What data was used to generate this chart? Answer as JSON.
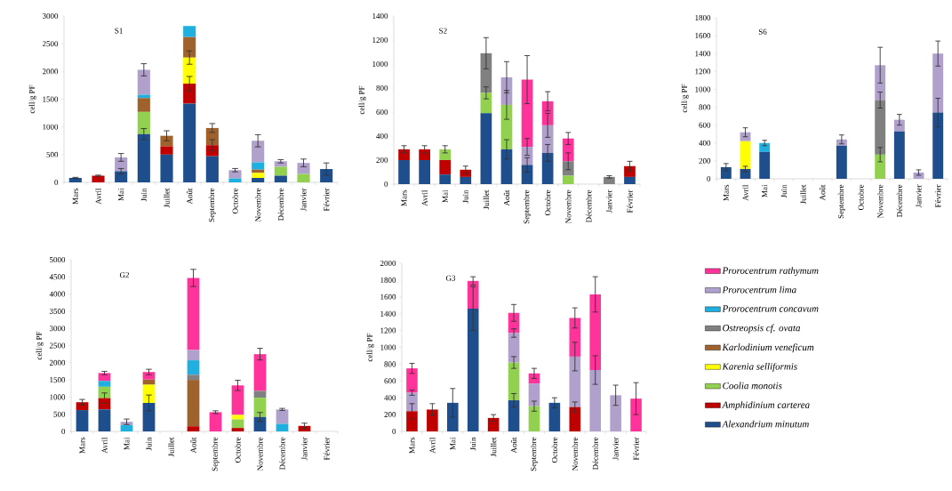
{
  "chart_data": [
    {
      "type": "bar",
      "stacked": true,
      "title": "S1",
      "ylabel": "cell/g PF",
      "categories": [
        "Mars",
        "Avril",
        "Mai",
        "Juin",
        "Juillet",
        "Août",
        "Septembre",
        "Octobre",
        "Novembre",
        "Décembre",
        "Janvier",
        "Février"
      ],
      "ylim": [
        0,
        3000
      ],
      "yticks": [
        0,
        500,
        1000,
        1500,
        2000,
        2500,
        3000
      ],
      "series": [
        {
          "color": "#1f4e8c",
          "values": [
            80,
            null,
            200,
            870,
            500,
            1420,
            470,
            null,
            80,
            120,
            null,
            240
          ],
          "errors": [
            10,
            null,
            50,
            100,
            null,
            null,
            null,
            null,
            null,
            null,
            null,
            110
          ]
        },
        {
          "color": "#c00000",
          "values": [
            null,
            120,
            null,
            null,
            150,
            360,
            200,
            null,
            null,
            null,
            null,
            null
          ],
          "errors": [
            null,
            10,
            null,
            null,
            null,
            130,
            100,
            null,
            null,
            null,
            null,
            null
          ]
        },
        {
          "color": "#92d050",
          "values": [
            null,
            null,
            null,
            400,
            null,
            null,
            null,
            null,
            null,
            160,
            150,
            null
          ],
          "errors": [
            null,
            null,
            null,
            null,
            null,
            null,
            null,
            null,
            null,
            null,
            null,
            null
          ]
        },
        {
          "color": "#ffff00",
          "values": [
            null,
            null,
            null,
            null,
            null,
            470,
            null,
            null,
            90,
            null,
            null,
            null
          ],
          "errors": [
            null,
            null,
            null,
            null,
            null,
            120,
            null,
            null,
            null,
            null,
            null,
            null
          ]
        },
        {
          "color": "#a0622d",
          "values": [
            null,
            null,
            null,
            250,
            190,
            370,
            310,
            null,
            60,
            null,
            null,
            null
          ],
          "errors": [
            null,
            null,
            null,
            null,
            90,
            null,
            80,
            null,
            null,
            null,
            null,
            null
          ]
        },
        {
          "color": "#1fb0e0",
          "values": [
            null,
            null,
            null,
            60,
            null,
            200,
            null,
            70,
            130,
            null,
            null,
            null
          ],
          "errors": [
            null,
            null,
            null,
            null,
            null,
            null,
            null,
            null,
            null,
            null,
            null,
            null
          ]
        },
        {
          "color": "#b0a0cc",
          "values": [
            null,
            null,
            250,
            450,
            null,
            null,
            null,
            150,
            390,
            100,
            200,
            null
          ],
          "errors": [
            null,
            null,
            70,
            110,
            null,
            null,
            null,
            30,
            110,
            30,
            70,
            null
          ]
        }
      ]
    },
    {
      "type": "bar",
      "stacked": true,
      "title": "S2",
      "ylabel": "cell/g PF",
      "categories": [
        "Mars",
        "Avril",
        "Mai",
        "Juin",
        "Juillet",
        "Août",
        "Septembre",
        "Octobre",
        "Novembre",
        "Décembre",
        "Janvier",
        "Février"
      ],
      "ylim": [
        0,
        1400
      ],
      "yticks": [
        0,
        200,
        400,
        600,
        800,
        1000,
        1200,
        1400
      ],
      "series": [
        {
          "color": "#1f4e8c",
          "values": [
            200,
            200,
            80,
            60,
            590,
            290,
            160,
            260,
            null,
            null,
            null,
            60
          ],
          "errors": [
            null,
            null,
            null,
            null,
            null,
            80,
            60,
            70,
            null,
            null,
            null,
            null
          ]
        },
        {
          "color": "#c00000",
          "values": [
            90,
            90,
            120,
            60,
            null,
            null,
            null,
            null,
            null,
            null,
            null,
            90
          ],
          "errors": [
            30,
            30,
            null,
            30,
            null,
            null,
            null,
            null,
            null,
            null,
            null,
            40
          ]
        },
        {
          "color": "#92d050",
          "values": [
            null,
            null,
            90,
            null,
            170,
            370,
            null,
            null,
            70,
            null,
            null,
            null
          ],
          "errors": [
            null,
            null,
            30,
            null,
            50,
            120,
            null,
            null,
            null,
            null,
            null,
            null
          ]
        },
        {
          "color": "#808080",
          "values": [
            null,
            null,
            null,
            null,
            330,
            null,
            null,
            null,
            120,
            null,
            60,
            null
          ],
          "errors": [
            null,
            null,
            null,
            null,
            130,
            null,
            null,
            null,
            70,
            null,
            10,
            null
          ]
        },
        {
          "color": "#b0a0cc",
          "values": [
            null,
            null,
            null,
            null,
            null,
            230,
            150,
            230,
            null,
            null,
            null,
            null
          ],
          "errors": [
            null,
            null,
            null,
            null,
            null,
            130,
            70,
            100,
            null,
            null,
            null,
            null
          ]
        },
        {
          "color": "#ff3399",
          "values": [
            null,
            null,
            null,
            null,
            null,
            null,
            560,
            200,
            190,
            null,
            null,
            null
          ],
          "errors": [
            null,
            null,
            null,
            null,
            null,
            null,
            200,
            80,
            50,
            null,
            null,
            null
          ]
        }
      ]
    },
    {
      "type": "bar",
      "stacked": true,
      "title": "S6",
      "ylabel": "cell/g PF",
      "categories": [
        "Mars",
        "Avril",
        "Mai",
        "Juin",
        "Juillet",
        "Août",
        "Septembre",
        "Octobre",
        "Novembre",
        "Décembre",
        "Janvier",
        "Février"
      ],
      "ylim": [
        0,
        1800
      ],
      "yticks": [
        0,
        200,
        400,
        600,
        800,
        1000,
        1200,
        1400,
        1600,
        1800
      ],
      "series": [
        {
          "color": "#1f4e8c",
          "values": [
            130,
            110,
            300,
            null,
            null,
            null,
            370,
            null,
            null,
            530,
            null,
            740
          ],
          "errors": [
            40,
            30,
            null,
            null,
            null,
            null,
            null,
            null,
            null,
            null,
            null,
            160
          ]
        },
        {
          "color": "#92d050",
          "values": [
            null,
            null,
            null,
            null,
            null,
            null,
            null,
            null,
            270,
            null,
            null,
            null
          ],
          "errors": [
            null,
            null,
            null,
            null,
            null,
            null,
            null,
            null,
            80,
            null,
            null,
            null
          ]
        },
        {
          "color": "#ffff00",
          "values": [
            null,
            310,
            null,
            null,
            null,
            null,
            null,
            null,
            null,
            null,
            null,
            null
          ],
          "errors": [
            null,
            null,
            null,
            null,
            null,
            null,
            null,
            null,
            null,
            null,
            null,
            null
          ]
        },
        {
          "color": "#808080",
          "values": [
            null,
            null,
            null,
            null,
            null,
            null,
            null,
            null,
            610,
            null,
            null,
            null
          ],
          "errors": [
            null,
            null,
            null,
            null,
            null,
            null,
            null,
            null,
            90,
            null,
            null,
            null
          ]
        },
        {
          "color": "#1fb0e0",
          "values": [
            null,
            null,
            100,
            null,
            null,
            null,
            null,
            null,
            null,
            null,
            null,
            null
          ],
          "errors": [
            null,
            null,
            30,
            null,
            null,
            null,
            null,
            null,
            null,
            null,
            null,
            null
          ]
        },
        {
          "color": "#b0a0cc",
          "values": [
            null,
            100,
            null,
            null,
            null,
            null,
            70,
            null,
            390,
            130,
            70,
            660
          ],
          "errors": [
            null,
            50,
            null,
            null,
            null,
            null,
            50,
            null,
            200,
            60,
            30,
            140
          ]
        }
      ]
    },
    {
      "type": "bar",
      "stacked": true,
      "title": "G2",
      "ylabel": "cell/g PF",
      "categories": [
        "Mars",
        "Avril",
        "Mai",
        "Juin",
        "Juillet",
        "Août",
        "Septembre",
        "Octobre",
        "Novembre",
        "Décembre",
        "Janvier",
        "Février"
      ],
      "ylim": [
        0,
        5000
      ],
      "yticks": [
        0,
        500,
        1000,
        1500,
        2000,
        2500,
        3000,
        3500,
        4000,
        4500,
        5000
      ],
      "series": [
        {
          "color": "#1f4e8c",
          "values": [
            620,
            640,
            null,
            830,
            null,
            null,
            null,
            null,
            420,
            null,
            null,
            null
          ],
          "errors": [
            null,
            null,
            null,
            230,
            null,
            null,
            null,
            null,
            130,
            null,
            null,
            null
          ]
        },
        {
          "color": "#c00000",
          "values": [
            230,
            330,
            null,
            null,
            null,
            150,
            null,
            100,
            null,
            null,
            160,
            null
          ],
          "errors": [
            80,
            150,
            null,
            null,
            null,
            null,
            null,
            null,
            null,
            null,
            80,
            null
          ]
        },
        {
          "color": "#92d050",
          "values": [
            null,
            330,
            null,
            null,
            null,
            null,
            null,
            250,
            560,
            null,
            null,
            null
          ],
          "errors": [
            null,
            null,
            null,
            null,
            null,
            null,
            null,
            null,
            null,
            null,
            null,
            null
          ]
        },
        {
          "color": "#ffff00",
          "values": [
            null,
            null,
            null,
            530,
            null,
            null,
            null,
            130,
            null,
            null,
            null,
            null
          ],
          "errors": [
            null,
            null,
            null,
            null,
            null,
            null,
            null,
            null,
            null,
            null,
            null,
            null
          ]
        },
        {
          "color": "#a0622d",
          "values": [
            null,
            null,
            null,
            150,
            null,
            1350,
            null,
            null,
            null,
            null,
            null,
            null
          ],
          "errors": [
            null,
            null,
            null,
            null,
            null,
            null,
            null,
            null,
            null,
            null,
            null,
            null
          ]
        },
        {
          "color": "#808080",
          "values": [
            null,
            null,
            null,
            null,
            null,
            150,
            null,
            null,
            200,
            null,
            null,
            null
          ],
          "errors": [
            null,
            null,
            null,
            null,
            null,
            null,
            null,
            null,
            null,
            null,
            null,
            null
          ]
        },
        {
          "color": "#1fb0e0",
          "values": [
            null,
            170,
            180,
            null,
            null,
            420,
            null,
            null,
            null,
            220,
            null,
            null
          ],
          "errors": [
            null,
            null,
            null,
            null,
            null,
            null,
            null,
            null,
            null,
            null,
            null,
            null
          ]
        },
        {
          "color": "#b0a0cc",
          "values": [
            null,
            null,
            100,
            null,
            null,
            300,
            null,
            null,
            null,
            420,
            null,
            null
          ],
          "errors": [
            null,
            null,
            80,
            null,
            null,
            null,
            null,
            null,
            null,
            30,
            null,
            null
          ]
        },
        {
          "color": "#ff3399",
          "values": [
            null,
            230,
            null,
            220,
            null,
            2100,
            560,
            860,
            1070,
            null,
            null,
            null
          ],
          "errors": [
            null,
            50,
            null,
            80,
            null,
            250,
            40,
            150,
            170,
            null,
            null,
            null
          ]
        }
      ]
    },
    {
      "type": "bar",
      "stacked": true,
      "title": "G3",
      "ylabel": "cell/g PF",
      "legend": "right",
      "categories": [
        "Mars",
        "Avril",
        "Mai",
        "Juin",
        "Juillet",
        "Août",
        "Septembre",
        "Octobre",
        "Novembre",
        "Décembre",
        "Janvier",
        "Février"
      ],
      "ylim": [
        0,
        2000
      ],
      "yticks": [
        0,
        200,
        400,
        600,
        800,
        1000,
        1200,
        1400,
        1600,
        1800,
        2000
      ],
      "series": [
        {
          "name": "Alexandrium minutum",
          "color": "#1f4e8c",
          "values": [
            null,
            null,
            340,
            1460,
            null,
            370,
            null,
            340,
            null,
            null,
            null,
            null
          ],
          "errors": [
            null,
            null,
            170,
            260,
            null,
            80,
            null,
            60,
            null,
            null,
            null,
            null
          ]
        },
        {
          "name": "Amphidinium carterea",
          "color": "#c00000",
          "values": [
            240,
            260,
            null,
            null,
            160,
            null,
            null,
            null,
            290,
            null,
            null,
            null
          ],
          "errors": [
            90,
            70,
            null,
            null,
            40,
            null,
            null,
            null,
            60,
            null,
            null,
            null
          ]
        },
        {
          "name": "Coolia monotis",
          "color": "#92d050",
          "values": [
            null,
            null,
            null,
            null,
            null,
            450,
            300,
            null,
            null,
            null,
            null,
            null
          ],
          "errors": [
            null,
            null,
            null,
            null,
            null,
            70,
            60,
            null,
            null,
            null,
            null,
            null
          ]
        },
        {
          "name": "Karenia selliformis",
          "color": "#ffff00",
          "values": [
            null,
            null,
            null,
            null,
            null,
            null,
            null,
            null,
            null,
            null,
            null,
            null
          ],
          "errors": [
            null,
            null,
            null,
            null,
            null,
            null,
            null,
            null,
            null,
            null,
            null,
            null
          ]
        },
        {
          "name": "Karlodinium veneficum",
          "color": "#a0622d",
          "values": [
            null,
            null,
            null,
            null,
            null,
            null,
            null,
            null,
            null,
            null,
            null,
            null
          ],
          "errors": [
            null,
            null,
            null,
            null,
            null,
            null,
            null,
            null,
            null,
            null,
            null,
            null
          ]
        },
        {
          "name": "Ostreopsis cf. ovata",
          "color": "#808080",
          "values": [
            null,
            null,
            null,
            null,
            null,
            null,
            null,
            null,
            null,
            null,
            null,
            null
          ],
          "errors": [
            null,
            null,
            null,
            null,
            null,
            null,
            null,
            null,
            null,
            null,
            null,
            null
          ]
        },
        {
          "name": "Prorocentrum concavum",
          "color": "#1fb0e0",
          "values": [
            null,
            null,
            null,
            null,
            null,
            null,
            null,
            null,
            null,
            null,
            null,
            null
          ],
          "errors": [
            null,
            null,
            null,
            null,
            null,
            null,
            null,
            null,
            null,
            null,
            null,
            null
          ]
        },
        {
          "name": "Prorocentrum lima",
          "color": "#b0a0cc",
          "values": [
            220,
            null,
            null,
            null,
            null,
            350,
            270,
            null,
            600,
            730,
            430,
            null
          ],
          "errors": [
            30,
            null,
            null,
            null,
            null,
            50,
            null,
            null,
            170,
            170,
            120,
            null
          ]
        },
        {
          "name": "Prorocentrum rathymum",
          "color": "#ff3399",
          "values": [
            290,
            null,
            null,
            330,
            null,
            240,
            120,
            null,
            460,
            900,
            null,
            390
          ],
          "errors": [
            60,
            null,
            null,
            50,
            null,
            100,
            60,
            null,
            120,
            210,
            null,
            190
          ]
        }
      ]
    }
  ]
}
